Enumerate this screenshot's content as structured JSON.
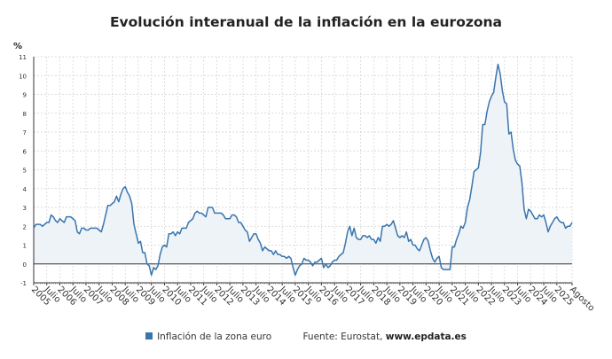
{
  "chart_data": {
    "type": "area",
    "title": "Evolución interanual de la inflación en la eurozona",
    "ylabel": "%",
    "ylim": [
      -1,
      11
    ],
    "yticks": [
      -1,
      0,
      1,
      2,
      3,
      4,
      5,
      6,
      7,
      8,
      9,
      10,
      11
    ],
    "grid": true,
    "legend_position": "bottom",
    "x_start": "2005-01",
    "x_end": "2025-08",
    "xtick_labels": [
      "2005",
      "Julio",
      "2006",
      "Julio",
      "2007",
      "Julio",
      "2008",
      "Julio",
      "2009",
      "Julio",
      "2010",
      "Julio",
      "2011",
      "Julio",
      "2012",
      "Julio",
      "2013",
      "Julio",
      "2014",
      "Julio",
      "2015",
      "Julio",
      "2016",
      "Julio",
      "2017",
      "Julio",
      "2018",
      "Julio",
      "2019",
      "Julio",
      "2020",
      "Julio",
      "2021",
      "Julio",
      "2022",
      "Julio",
      "2023",
      "Julio",
      "2024",
      "Julio",
      "2025",
      "Agosto"
    ],
    "series": [
      {
        "name": "Inflación de la zona euro",
        "color": "#3a75ad",
        "fill": "#eef3f8",
        "values": [
          1.9,
          2.1,
          2.1,
          2.1,
          2.0,
          2.1,
          2.2,
          2.2,
          2.6,
          2.5,
          2.3,
          2.2,
          2.4,
          2.3,
          2.2,
          2.5,
          2.5,
          2.5,
          2.4,
          2.3,
          1.7,
          1.6,
          1.9,
          1.9,
          1.8,
          1.8,
          1.9,
          1.9,
          1.9,
          1.9,
          1.8,
          1.7,
          2.1,
          2.6,
          3.1,
          3.1,
          3.2,
          3.3,
          3.6,
          3.3,
          3.7,
          4.0,
          4.1,
          3.8,
          3.6,
          3.2,
          2.1,
          1.6,
          1.1,
          1.2,
          0.6,
          0.6,
          0.0,
          -0.1,
          -0.6,
          -0.2,
          -0.3,
          -0.1,
          0.5,
          0.9,
          1.0,
          0.9,
          1.6,
          1.6,
          1.7,
          1.5,
          1.7,
          1.6,
          1.9,
          1.9,
          1.9,
          2.2,
          2.3,
          2.4,
          2.7,
          2.8,
          2.7,
          2.7,
          2.6,
          2.5,
          3.0,
          3.0,
          3.0,
          2.7,
          2.7,
          2.7,
          2.7,
          2.6,
          2.4,
          2.4,
          2.4,
          2.6,
          2.6,
          2.5,
          2.2,
          2.2,
          2.0,
          1.8,
          1.7,
          1.2,
          1.4,
          1.6,
          1.6,
          1.3,
          1.1,
          0.7,
          0.9,
          0.8,
          0.7,
          0.7,
          0.5,
          0.7,
          0.5,
          0.5,
          0.4,
          0.4,
          0.3,
          0.4,
          0.3,
          -0.2,
          -0.6,
          -0.3,
          -0.1,
          0.0,
          0.3,
          0.2,
          0.2,
          0.1,
          -0.1,
          0.1,
          0.1,
          0.2,
          0.3,
          -0.2,
          0.0,
          -0.2,
          -0.1,
          0.1,
          0.2,
          0.2,
          0.4,
          0.5,
          0.6,
          1.1,
          1.7,
          2.0,
          1.5,
          1.9,
          1.4,
          1.3,
          1.3,
          1.5,
          1.5,
          1.4,
          1.5,
          1.3,
          1.3,
          1.1,
          1.4,
          1.2,
          2.0,
          2.0,
          2.1,
          2.0,
          2.1,
          2.3,
          1.9,
          1.5,
          1.4,
          1.5,
          1.4,
          1.7,
          1.2,
          1.3,
          1.0,
          1.0,
          0.8,
          0.7,
          1.0,
          1.3,
          1.4,
          1.2,
          0.7,
          0.3,
          0.1,
          0.3,
          0.4,
          -0.2,
          -0.3,
          -0.3,
          -0.3,
          -0.3,
          0.9,
          0.9,
          1.3,
          1.6,
          2.0,
          1.9,
          2.2,
          3.0,
          3.4,
          4.1,
          4.9,
          5.0,
          5.1,
          5.9,
          7.4,
          7.4,
          8.1,
          8.6,
          8.9,
          9.1,
          9.9,
          10.6,
          10.1,
          9.2,
          8.6,
          8.5,
          6.9,
          7.0,
          6.1,
          5.5,
          5.3,
          5.2,
          4.3,
          2.9,
          2.4,
          2.9,
          2.8,
          2.6,
          2.4,
          2.4,
          2.6,
          2.5,
          2.6,
          2.2,
          1.7,
          2.0,
          2.2,
          2.4,
          2.5,
          2.3,
          2.2,
          2.2,
          1.9,
          2.0,
          2.0,
          2.2
        ]
      }
    ]
  },
  "legend": {
    "series_label": "Inflación de la zona euro",
    "source_prefix": "Fuente: Eurostat,",
    "source_site": "www.epdata.es"
  }
}
